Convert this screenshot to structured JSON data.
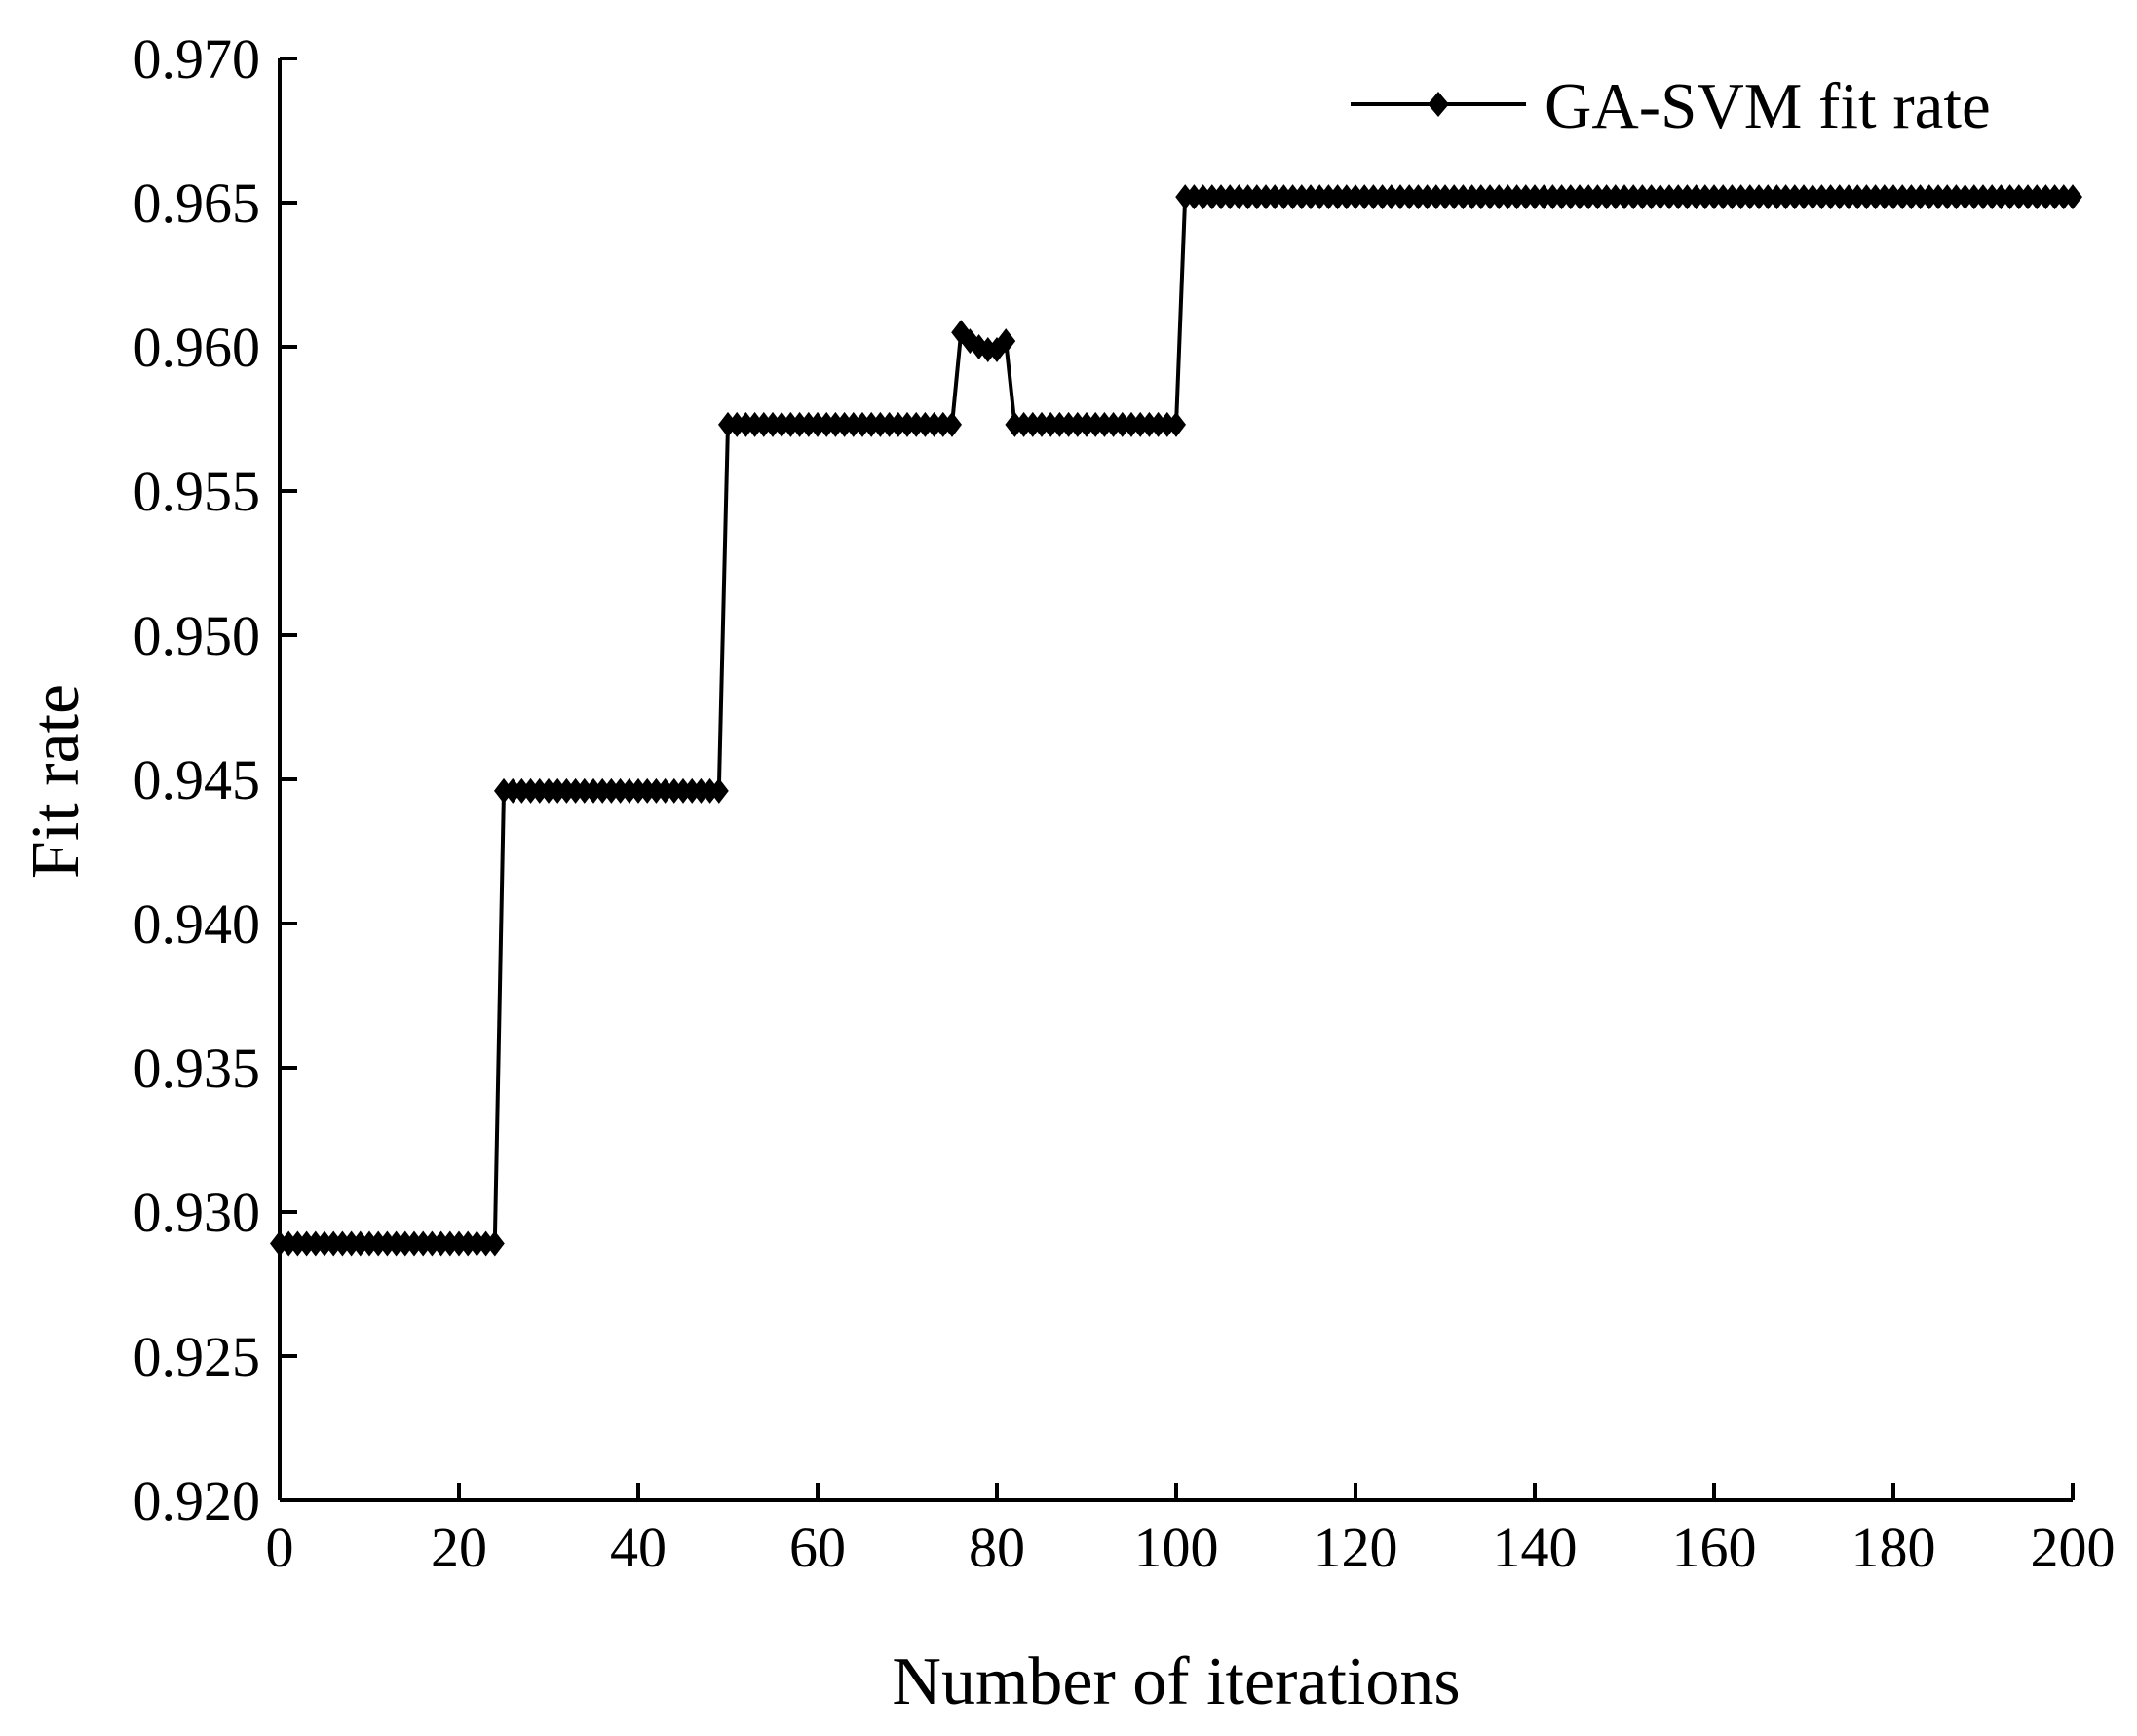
{
  "chart_data": {
    "type": "line",
    "xlabel": "Number of iterations",
    "ylabel": "Fit rate",
    "xlim": [
      0,
      200
    ],
    "ylim": [
      0.92,
      0.97
    ],
    "x_ticks": [
      "0",
      "20",
      "40",
      "60",
      "80",
      "100",
      "120",
      "140",
      "160",
      "180",
      "200"
    ],
    "y_ticks": [
      "0.920",
      "0.925",
      "0.930",
      "0.935",
      "0.940",
      "0.945",
      "0.950",
      "0.955",
      "0.960",
      "0.965",
      "0.970"
    ],
    "grid": false,
    "legend_position": "top-right",
    "line_color": "#000000",
    "marker": "diamond",
    "series": [
      {
        "name": "GA-SVM fit rate",
        "segments": [
          {
            "from": 0,
            "to": 24,
            "value": 0.9289
          },
          {
            "from": 25,
            "to": 49,
            "value": 0.9446
          },
          {
            "from": 50,
            "to": 75,
            "value": 0.9573
          },
          {
            "points": [
              [
                76,
                0.9605
              ],
              [
                77,
                0.9602
              ],
              [
                78,
                0.96
              ],
              [
                79,
                0.9599
              ],
              [
                80,
                0.9599
              ],
              [
                81,
                0.9602
              ]
            ]
          },
          {
            "from": 82,
            "to": 100,
            "value": 0.9573
          },
          {
            "from": 101,
            "to": 200,
            "value": 0.9652
          }
        ]
      }
    ]
  }
}
